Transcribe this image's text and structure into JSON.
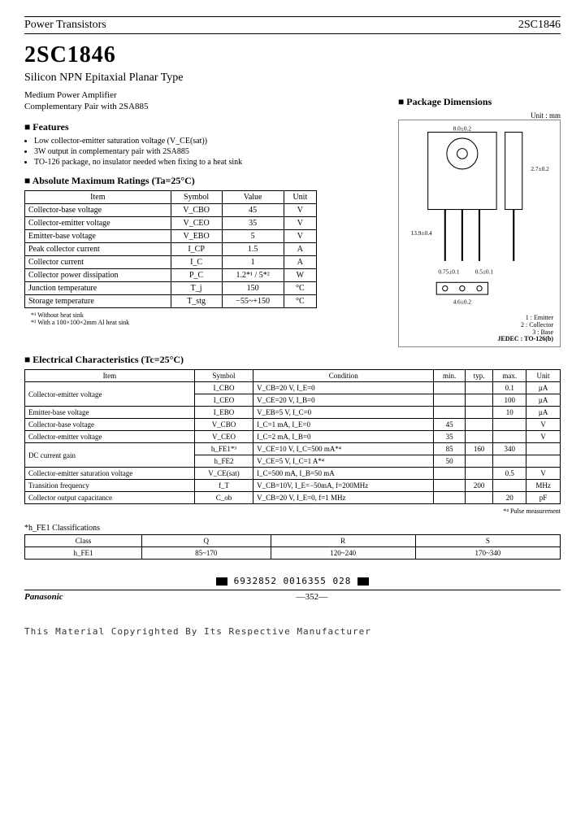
{
  "header": {
    "left": "Power Transistors",
    "right": "2SC1846"
  },
  "title": "2SC1846",
  "subtitle": "Silicon NPN Epitaxial Planar Type",
  "description_l1": "Medium Power Amplifier",
  "description_l2": "Complementary Pair with 2SA885",
  "features_head": "Features",
  "features": [
    "Low collector-emitter saturation voltage (V_CE(sat))",
    "3W output in complementary pair with 2SA885",
    "TO-126 package, no insulator needed when fixing to a heat sink"
  ],
  "pkg_head": "Package Dimensions",
  "pkg_unit": "Unit : mm",
  "pkg_pins": {
    "p1": "1 : Emitter",
    "p2": "2 : Collector",
    "p3": "3 : Base",
    "jedec": "JEDEC : TO-126(b)"
  },
  "ratings_head": "Absolute Maximum Ratings (Ta=25°C)",
  "ratings_cols": [
    "Item",
    "Symbol",
    "Value",
    "Unit"
  ],
  "ratings": [
    {
      "item": "Collector-base voltage",
      "sym": "V_CBO",
      "val": "45",
      "unit": "V"
    },
    {
      "item": "Collector-emitter voltage",
      "sym": "V_CEO",
      "val": "35",
      "unit": "V"
    },
    {
      "item": "Emitter-base voltage",
      "sym": "V_EBO",
      "val": "5",
      "unit": "V"
    },
    {
      "item": "Peak collector current",
      "sym": "I_CP",
      "val": "1.5",
      "unit": "A"
    },
    {
      "item": "Collector current",
      "sym": "I_C",
      "val": "1",
      "unit": "A"
    },
    {
      "item": "Collector power dissipation",
      "sym": "P_C",
      "val": "1.2*¹ / 5*²",
      "unit": "W"
    },
    {
      "item": "Junction temperature",
      "sym": "T_j",
      "val": "150",
      "unit": "°C"
    },
    {
      "item": "Storage temperature",
      "sym": "T_stg",
      "val": "−55~+150",
      "unit": "°C"
    }
  ],
  "ratings_notes": "*¹ Without heat sink\n*² With a 100×100×2mm Al heat sink",
  "elec_head": "Electrical Characteristics (Tc=25°C)",
  "elec_cols": [
    "Item",
    "Symbol",
    "Condition",
    "min.",
    "typ.",
    "max.",
    "Unit"
  ],
  "elec": [
    {
      "item": "Collector-emitter voltage",
      "sym": "I_CBO",
      "cond": "V_CB=20 V, I_E=0",
      "min": "",
      "typ": "",
      "max": "0.1",
      "unit": "µA",
      "rowspan": 2
    },
    {
      "item": "",
      "sym": "I_CEO",
      "cond": "V_CE=20 V, I_B=0",
      "min": "",
      "typ": "",
      "max": "100",
      "unit": "µA"
    },
    {
      "item": "Emitter-base voltage",
      "sym": "I_EBO",
      "cond": "V_EB=5 V, I_C=0",
      "min": "",
      "typ": "",
      "max": "10",
      "unit": "µA"
    },
    {
      "item": "Collector-base voltage",
      "sym": "V_CBO",
      "cond": "I_C=1 mA, I_E=0",
      "min": "45",
      "typ": "",
      "max": "",
      "unit": "V"
    },
    {
      "item": "Collector-emitter voltage",
      "sym": "V_CEO",
      "cond": "I_C=2 mA, I_B=0",
      "min": "35",
      "typ": "",
      "max": "",
      "unit": "V"
    },
    {
      "item": "DC current gain",
      "sym": "h_FE1*³",
      "cond": "V_CE=10 V, I_C=500 mA*⁴",
      "min": "85",
      "typ": "160",
      "max": "340",
      "unit": "",
      "rowspan": 2
    },
    {
      "item": "",
      "sym": "h_FE2",
      "cond": "V_CE=5 V, I_C=1 A*⁴",
      "min": "50",
      "typ": "",
      "max": "",
      "unit": ""
    },
    {
      "item": "Collector-emitter saturation voltage",
      "sym": "V_CE(sat)",
      "cond": "I_C=500 mA, I_B=50 mA",
      "min": "",
      "typ": "",
      "max": "0.5",
      "unit": "V"
    },
    {
      "item": "Transition frequency",
      "sym": "f_T",
      "cond": "V_CB=10V, I_E=−50mA, f=200MHz",
      "min": "",
      "typ": "200",
      "max": "",
      "unit": "MHz"
    },
    {
      "item": "Collector output capacitance",
      "sym": "C_ob",
      "cond": "V_CB=20 V, I_E=0, f=1 MHz",
      "min": "",
      "typ": "",
      "max": "20",
      "unit": "pF"
    }
  ],
  "elec_note": "*⁴ Pulse measurement",
  "class_head": "*h_FE1 Classifications",
  "class_cols": [
    "Class",
    "Q",
    "R",
    "S"
  ],
  "class_vals": [
    "h_FE1",
    "85~170",
    "120~240",
    "170~340"
  ],
  "bottom_code": "6932852 0016355 028",
  "brand": "Panasonic",
  "page_num": "—352—",
  "copyright": "This Material Copyrighted By Its Respective Manufacturer"
}
